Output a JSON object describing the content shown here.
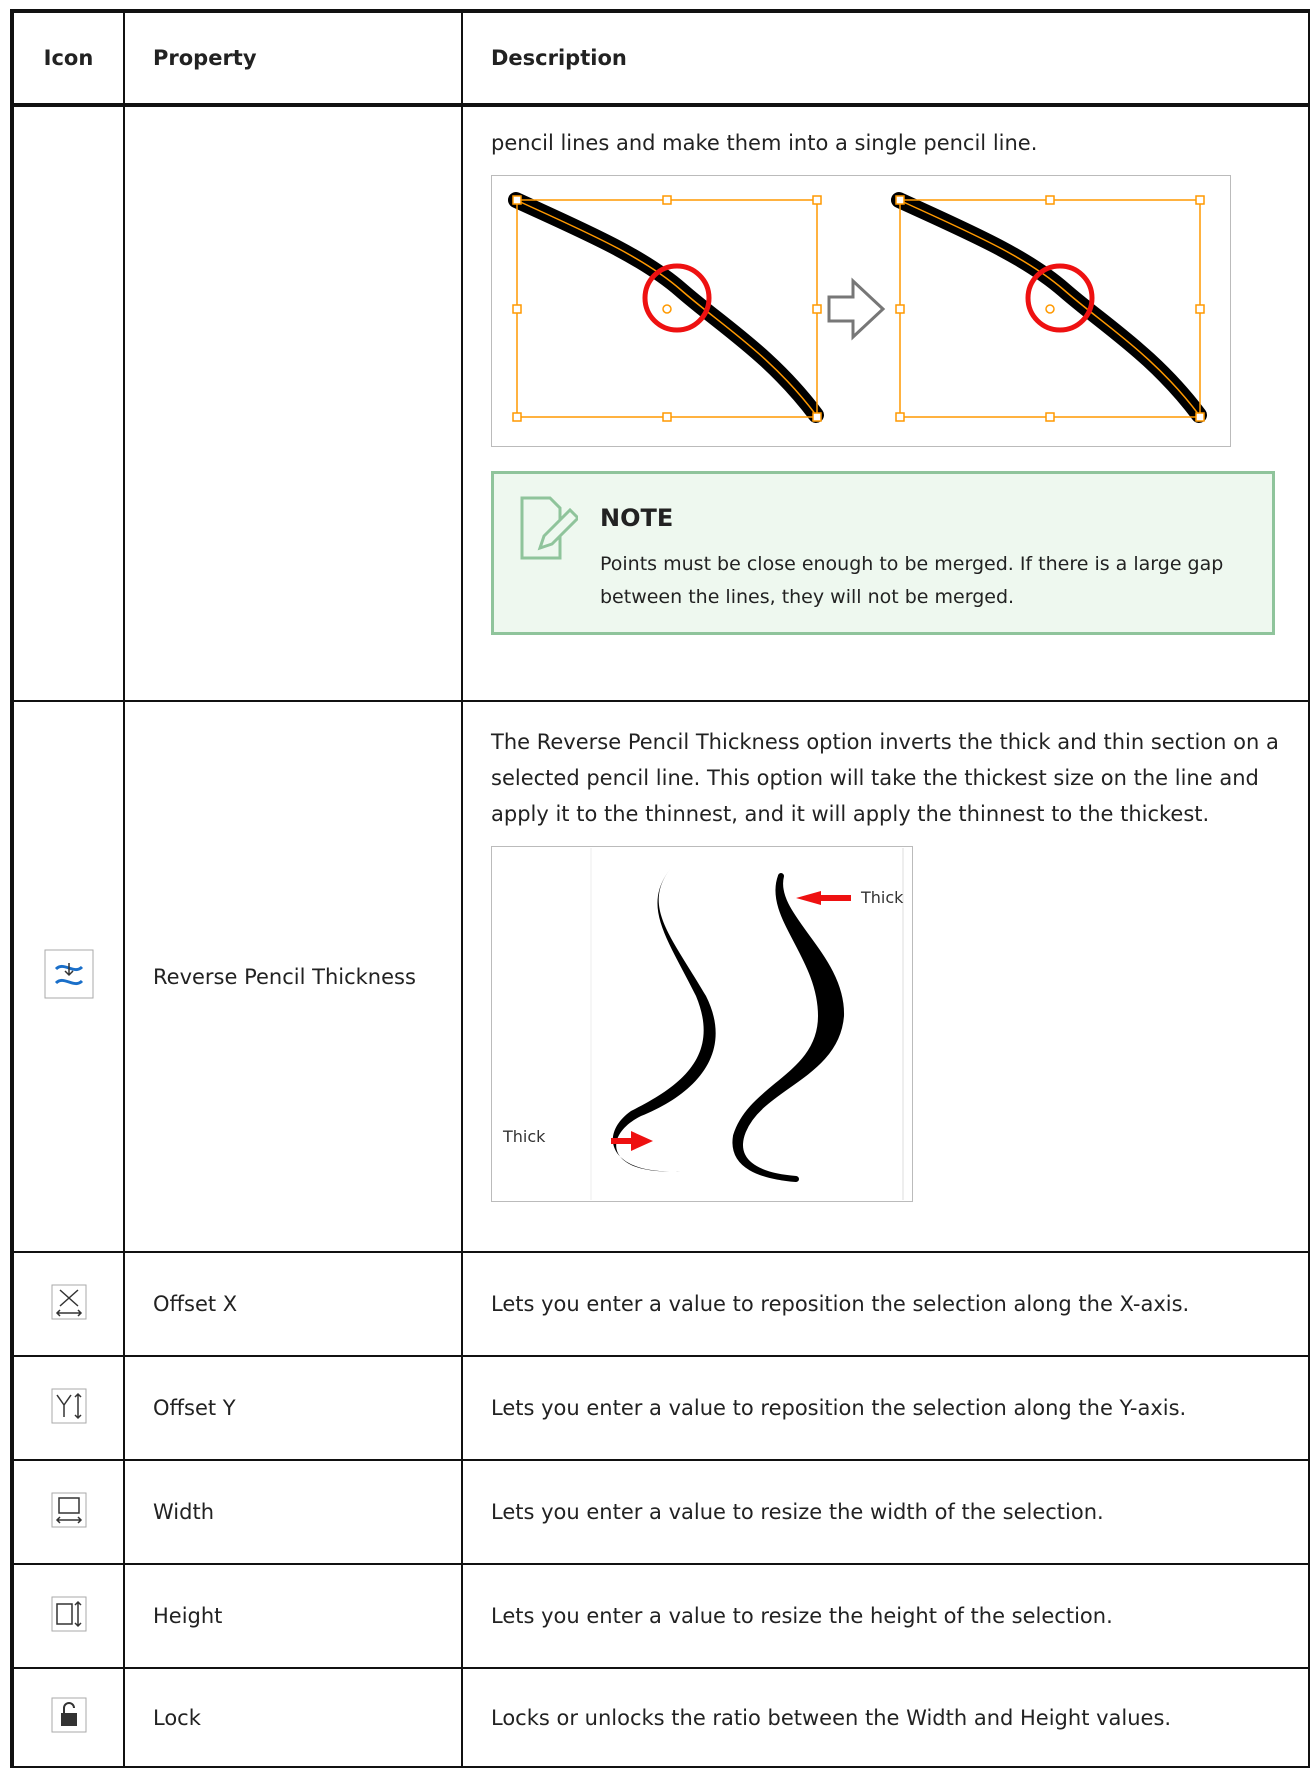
{
  "table": {
    "header": [
      "Icon",
      "Property",
      "Description"
    ],
    "rows": [
      {
        "description": "pencil lines and make them into a single pencil line.",
        "note": {
          "title": "NOTE",
          "text": "Points must be close enough to be merged. If there is a large gap between the lines, they will not be merged."
        }
      },
      {
        "property": "Reverse Pencil Thickness",
        "description": "The Reverse Pencil Thickness option inverts the thick and thin section on a selected pencil line. This option will take the thickest size on the line and apply it to the thinnest, and it will apply the thinnest to the thickest.",
        "image_labels": [
          "Thick",
          "Thick"
        ]
      },
      {
        "property": "Offset X",
        "description": "Lets you enter a value to reposition the selection along the X-axis."
      },
      {
        "property": "Offset Y",
        "description": "Lets you enter a value to reposition the selection along the Y-axis."
      },
      {
        "property": "Width",
        "description": "Lets you enter a value to resize the width of the selection."
      },
      {
        "property": "Height",
        "description": "Lets you enter a value to resize the height of the selection."
      },
      {
        "property": "Lock",
        "description": "Locks or unlocks the ratio between the Width and Height values."
      }
    ]
  }
}
